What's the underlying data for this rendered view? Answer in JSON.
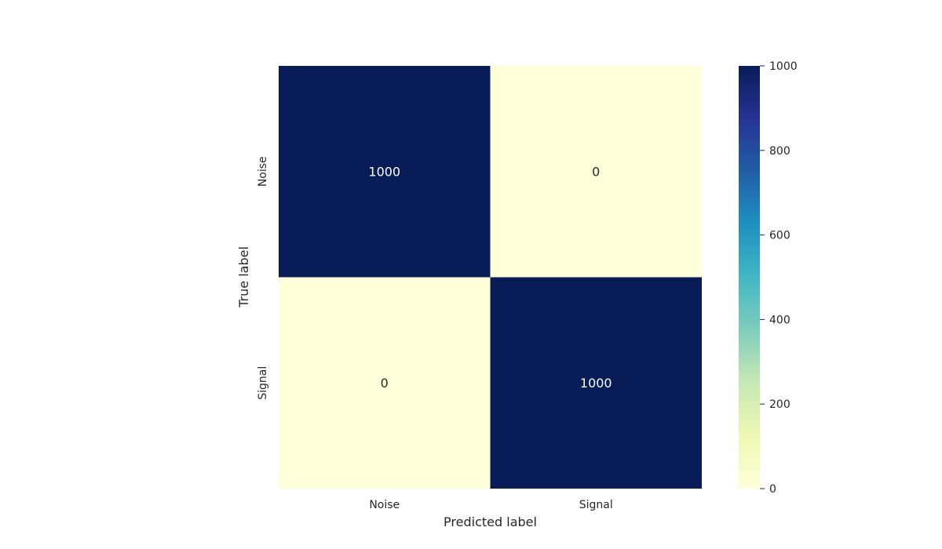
{
  "chart_data": {
    "type": "heatmap",
    "x_categories": [
      "Noise",
      "Signal"
    ],
    "y_categories": [
      "Noise",
      "Signal"
    ],
    "values": [
      [
        1000,
        0
      ],
      [
        0,
        1000
      ]
    ],
    "xlabel": "Predicted label",
    "ylabel": "True label",
    "colorbar": {
      "min": 0,
      "max": 1000,
      "ticks": [
        0,
        200,
        400,
        600,
        800,
        1000
      ],
      "colormap": "YlGnBu",
      "colors": [
        "#ffffd9",
        "#edf8b1",
        "#c7e9b4",
        "#7fcdbb",
        "#41b6c4",
        "#1d91c0",
        "#225ea8",
        "#253494",
        "#081d58"
      ]
    },
    "annotation_colors": {
      "on_dark": "#ffffff",
      "on_light": "#262626"
    }
  }
}
